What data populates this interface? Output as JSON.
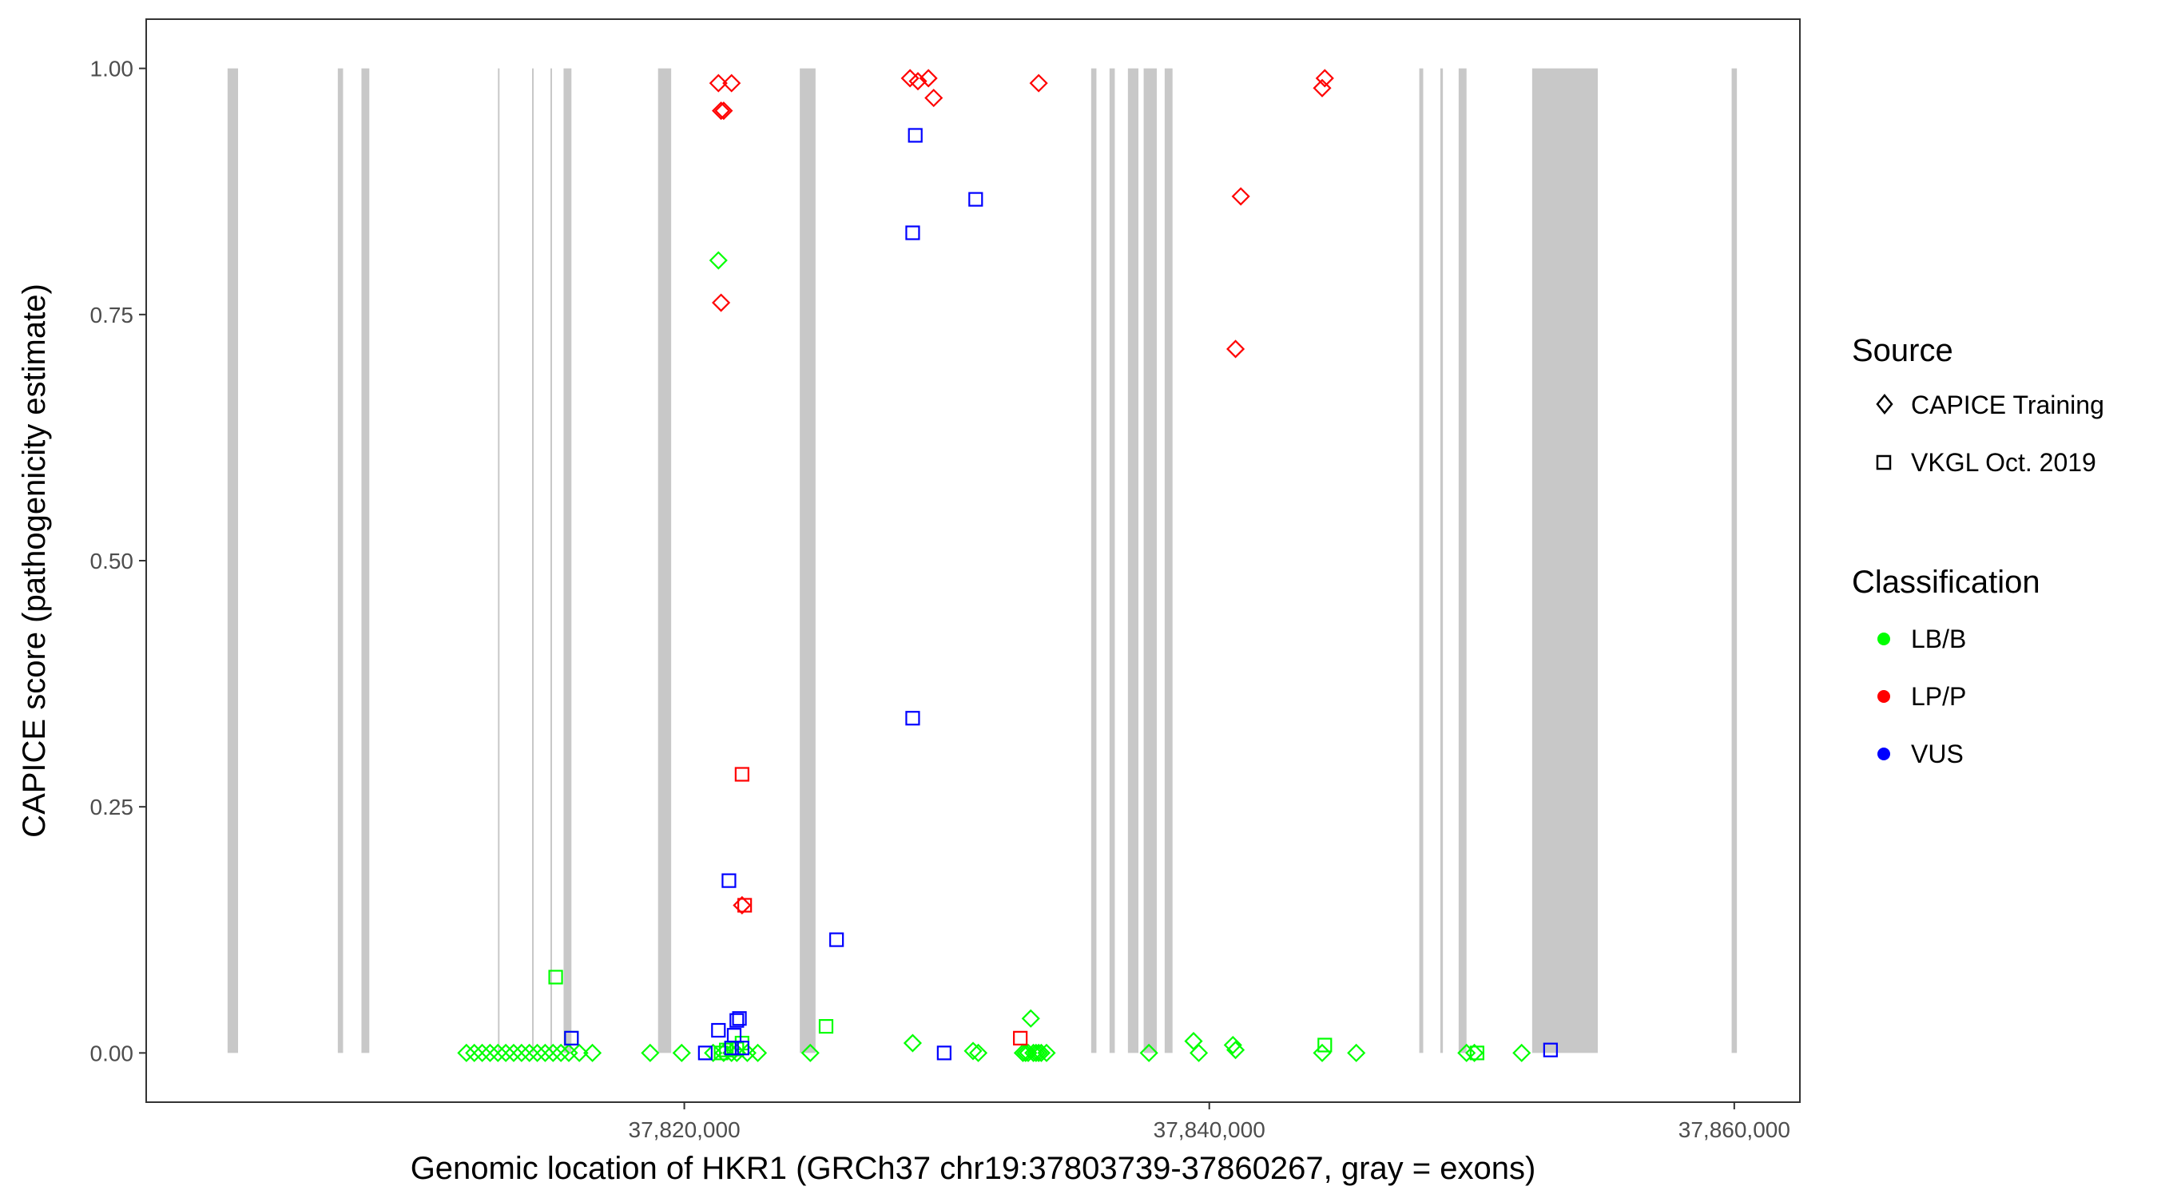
{
  "chart_data": {
    "type": "scatter",
    "xlabel": "Genomic location of HKR1 (GRCh37 chr19:37803739-37860267, gray = exons)",
    "ylabel": "CAPICE score (pathogenicity estimate)",
    "xlim": [
      37799500,
      37862500
    ],
    "ylim": [
      -0.05,
      1.05
    ],
    "x_ticks": [
      37820000,
      37840000,
      37860000
    ],
    "x_tick_labels": [
      "37,820,000",
      "37,840,000",
      "37,860,000"
    ],
    "y_ticks": [
      0,
      0.25,
      0.5,
      0.75,
      1.0
    ],
    "y_tick_labels": [
      "0.00",
      "0.25",
      "0.50",
      "0.75",
      "1.00"
    ],
    "grid": false,
    "legend_placement": "right",
    "exons": [
      [
        37802600,
        37803000
      ],
      [
        37806800,
        37807000
      ],
      [
        37807700,
        37808000
      ],
      [
        37812900,
        37812950
      ],
      [
        37814200,
        37814250
      ],
      [
        37814900,
        37814950
      ],
      [
        37815400,
        37815700
      ],
      [
        37819000,
        37819500
      ],
      [
        37824400,
        37825000
      ],
      [
        37835500,
        37835700
      ],
      [
        37836200,
        37836400
      ],
      [
        37836900,
        37837300
      ],
      [
        37837500,
        37838000
      ],
      [
        37838300,
        37838600
      ],
      [
        37848000,
        37848150
      ],
      [
        37848800,
        37848900
      ],
      [
        37849500,
        37849800
      ],
      [
        37852300,
        37854800
      ],
      [
        37859900,
        37860100
      ]
    ],
    "exon_color": "#c8c8c8",
    "legend": {
      "source": {
        "title": "Source",
        "items": [
          {
            "label": "CAPICE Training",
            "shape": "diamond"
          },
          {
            "label": "VKGL Oct. 2019",
            "shape": "square"
          }
        ]
      },
      "classification": {
        "title": "Classification",
        "items": [
          {
            "label": "LB/B",
            "color": "#00ff00"
          },
          {
            "label": "LP/P",
            "color": "#ff0000"
          },
          {
            "label": "VUS",
            "color": "#0000ff"
          }
        ]
      }
    },
    "series": [
      {
        "source": "CAPICE Training",
        "classification": "LB/B",
        "shape": "diamond",
        "color": "#00ff00",
        "points": [
          [
            37811700,
            0
          ],
          [
            37812000,
            0
          ],
          [
            37812300,
            0
          ],
          [
            37812600,
            0
          ],
          [
            37812900,
            0
          ],
          [
            37813200,
            0
          ],
          [
            37813500,
            0
          ],
          [
            37813800,
            0
          ],
          [
            37814100,
            0
          ],
          [
            37814400,
            0
          ],
          [
            37814700,
            0
          ],
          [
            37815000,
            0
          ],
          [
            37815300,
            0
          ],
          [
            37815600,
            0
          ],
          [
            37816000,
            0
          ],
          [
            37816500,
            0
          ],
          [
            37818700,
            0
          ],
          [
            37819900,
            0
          ],
          [
            37821100,
            0
          ],
          [
            37821300,
            0.805
          ],
          [
            37821500,
            0
          ],
          [
            37821800,
            0
          ],
          [
            37822000,
            0
          ],
          [
            37822400,
            0
          ],
          [
            37822800,
            0
          ],
          [
            37824800,
            0
          ],
          [
            37828700,
            0.01
          ],
          [
            37831000,
            0.002
          ],
          [
            37831200,
            0
          ],
          [
            37832900,
            0
          ],
          [
            37833000,
            0
          ],
          [
            37833100,
            0
          ],
          [
            37833200,
            0.035
          ],
          [
            37833300,
            0
          ],
          [
            37833400,
            0
          ],
          [
            37833500,
            0
          ],
          [
            37833600,
            0
          ],
          [
            37833800,
            0
          ],
          [
            37837700,
            0
          ],
          [
            37839400,
            0.012
          ],
          [
            37839600,
            0
          ],
          [
            37840900,
            0.008
          ],
          [
            37841000,
            0.003
          ],
          [
            37844300,
            0
          ],
          [
            37845600,
            0
          ],
          [
            37849800,
            0
          ],
          [
            37850100,
            0
          ],
          [
            37851900,
            0
          ]
        ]
      },
      {
        "source": "CAPICE Training",
        "classification": "LP/P",
        "shape": "diamond",
        "color": "#ff0000",
        "points": [
          [
            37821300,
            0.985
          ],
          [
            37821400,
            0.957
          ],
          [
            37821500,
            0.957
          ],
          [
            37821800,
            0.985
          ],
          [
            37821400,
            0.762
          ],
          [
            37822200,
            0.15
          ],
          [
            37828600,
            0.99
          ],
          [
            37828900,
            0.987
          ],
          [
            37829300,
            0.99
          ],
          [
            37829500,
            0.97
          ],
          [
            37833500,
            0.985
          ],
          [
            37841000,
            0.715
          ],
          [
            37841200,
            0.87
          ],
          [
            37844300,
            0.98
          ],
          [
            37844400,
            0.99
          ]
        ]
      },
      {
        "source": "VKGL Oct. 2019",
        "classification": "LB/B",
        "shape": "square",
        "color": "#00ff00",
        "points": [
          [
            37815100,
            0.077
          ],
          [
            37815700,
            0.015
          ],
          [
            37821400,
            0
          ],
          [
            37821600,
            0.003
          ],
          [
            37822000,
            0.004
          ],
          [
            37822200,
            0.01
          ],
          [
            37825400,
            0.027
          ],
          [
            37844400,
            0.008
          ],
          [
            37850200,
            0
          ]
        ]
      },
      {
        "source": "VKGL Oct. 2019",
        "classification": "LP/P",
        "shape": "square",
        "color": "#ff0000",
        "points": [
          [
            37822200,
            0.283
          ],
          [
            37822300,
            0.15
          ],
          [
            37832800,
            0.015
          ]
        ]
      },
      {
        "source": "VKGL Oct. 2019",
        "classification": "VUS",
        "shape": "square",
        "color": "#0000ff",
        "points": [
          [
            37815700,
            0.015
          ],
          [
            37820800,
            0
          ],
          [
            37821300,
            0.023
          ],
          [
            37821700,
            0.175
          ],
          [
            37821800,
            0.005
          ],
          [
            37821900,
            0.018
          ],
          [
            37822000,
            0.033
          ],
          [
            37822100,
            0.035
          ],
          [
            37822200,
            0.005
          ],
          [
            37825800,
            0.115
          ],
          [
            37828800,
            0.932
          ],
          [
            37828700,
            0.833
          ],
          [
            37828700,
            0.34
          ],
          [
            37829900,
            0
          ],
          [
            37831100,
            0.867
          ],
          [
            37853000,
            0.003
          ]
        ]
      }
    ]
  }
}
